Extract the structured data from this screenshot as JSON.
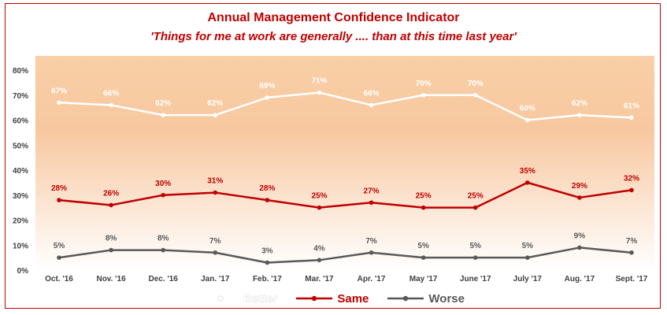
{
  "title": "Annual Management Confidence Indicator",
  "subtitle": "'Things for me at work are generally .... than at this time last year'",
  "chart_data": {
    "type": "line",
    "title": "Annual Management Confidence Indicator",
    "subtitle": "'Things for me at work are generally .... than at this time last year'",
    "categories": [
      "Oct. '16",
      "Nov. '16",
      "Dec. '16",
      "Jan. '17",
      "Feb. '17",
      "Mar. '17",
      "Apr. '17",
      "May '17",
      "June '17",
      "July '17",
      "Aug. '17",
      "Sept. '17"
    ],
    "ylim": [
      0,
      80
    ],
    "yticks": [
      0,
      10,
      20,
      30,
      40,
      50,
      60,
      70,
      80
    ],
    "ytick_suffix": "%",
    "grid": false,
    "legend_position": "bottom",
    "series": [
      {
        "name": "Better",
        "color": "#ffffff",
        "values": [
          67,
          66,
          62,
          62,
          69,
          71,
          66,
          70,
          70,
          60,
          62,
          61
        ]
      },
      {
        "name": "Same",
        "color": "#c00000",
        "values": [
          28,
          26,
          30,
          31,
          28,
          25,
          27,
          25,
          25,
          35,
          29,
          32
        ]
      },
      {
        "name": "Worse",
        "color": "#595959",
        "values": [
          5,
          8,
          8,
          7,
          3,
          4,
          7,
          5,
          5,
          5,
          9,
          7
        ]
      }
    ],
    "label_colors": {
      "Better": "#ffffff",
      "Same": "#c00000",
      "Worse": "#595959"
    }
  }
}
